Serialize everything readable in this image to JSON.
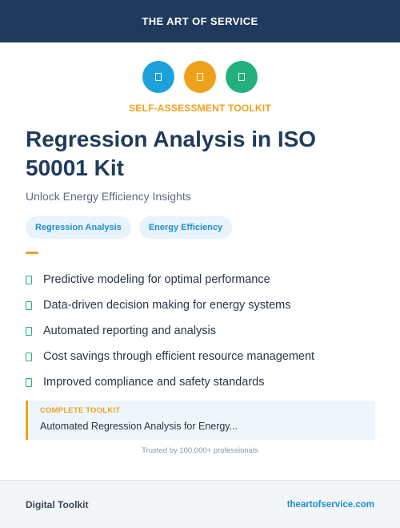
{
  "header": {
    "brand": "THE ART OF SERVICE"
  },
  "icons": [
    {
      "name": "doc-icon-1",
      "color": "#1da1dc"
    },
    {
      "name": "doc-icon-2",
      "color": "#f0a11b"
    },
    {
      "name": "doc-icon-3",
      "color": "#22b07d"
    }
  ],
  "eyebrow": "SELF-ASSESSMENT TOOLKIT",
  "title": "Regression Analysis in ISO 50001 Kit",
  "subtitle": "Unlock Energy Efficiency Insights",
  "tags": [
    "Regression Analysis",
    "Energy Efficiency"
  ],
  "features": [
    "Predictive modeling for optimal performance",
    "Data-driven decision making for energy systems",
    "Automated reporting and analysis",
    "Cost savings through efficient resource management",
    "Improved compliance and safety standards"
  ],
  "callout": {
    "label": "COMPLETE TOOLKIT",
    "text": "Automated Regression Analysis for Energy..."
  },
  "trust": "Trusted by 100,000+ professionals",
  "footer": {
    "left": "Digital Toolkit",
    "right": "theartofservice.com"
  },
  "colors": {
    "navy": "#1f3a5c",
    "orange": "#f0a11b",
    "blue": "#1da1dc",
    "green": "#22b07d"
  }
}
